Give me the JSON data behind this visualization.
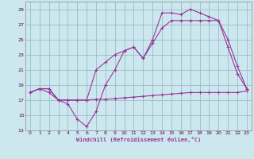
{
  "xlabel": "Windchill (Refroidissement éolien,°C)",
  "bg_color": "#cce8ee",
  "line_color": "#993399",
  "grid_color": "#99bbcc",
  "xlim": [
    -0.5,
    23.5
  ],
  "ylim": [
    13,
    30
  ],
  "xticks": [
    0,
    1,
    2,
    3,
    4,
    5,
    6,
    7,
    8,
    9,
    10,
    11,
    12,
    13,
    14,
    15,
    16,
    17,
    18,
    19,
    20,
    21,
    22,
    23
  ],
  "yticks": [
    13,
    15,
    17,
    19,
    21,
    23,
    25,
    27,
    29
  ],
  "line1": {
    "x": [
      0,
      1,
      2,
      3,
      4,
      5,
      6,
      7,
      8,
      9,
      10,
      11,
      12,
      13,
      14,
      15,
      16,
      17,
      18,
      19,
      20,
      21,
      22,
      23
    ],
    "y": [
      18.0,
      18.5,
      18.0,
      17.0,
      17.0,
      17.0,
      17.0,
      17.1,
      17.1,
      17.2,
      17.3,
      17.4,
      17.5,
      17.6,
      17.7,
      17.8,
      17.9,
      18.0,
      18.0,
      18.0,
      18.0,
      18.0,
      18.0,
      18.2
    ]
  },
  "line2": {
    "x": [
      0,
      1,
      2,
      3,
      4,
      5,
      6,
      7,
      8,
      9,
      10,
      11,
      12,
      13,
      14,
      15,
      16,
      17,
      18,
      19,
      20,
      21,
      22,
      23
    ],
    "y": [
      18.0,
      18.5,
      18.5,
      17.0,
      16.5,
      14.5,
      13.5,
      15.5,
      19.0,
      21.0,
      23.5,
      24.0,
      22.5,
      25.0,
      28.5,
      28.5,
      28.3,
      29.0,
      28.5,
      28.0,
      27.5,
      24.0,
      20.5,
      18.5
    ]
  },
  "line3": {
    "x": [
      0,
      1,
      2,
      3,
      4,
      5,
      6,
      7,
      8,
      9,
      10,
      11,
      12,
      13,
      14,
      15,
      16,
      17,
      18,
      19,
      20,
      21,
      22,
      23
    ],
    "y": [
      18.0,
      18.5,
      18.5,
      17.0,
      17.0,
      17.0,
      17.0,
      21.0,
      22.0,
      23.0,
      23.5,
      24.0,
      22.5,
      24.5,
      26.5,
      27.5,
      27.5,
      27.5,
      27.5,
      27.5,
      27.5,
      25.0,
      21.5,
      18.5
    ]
  }
}
